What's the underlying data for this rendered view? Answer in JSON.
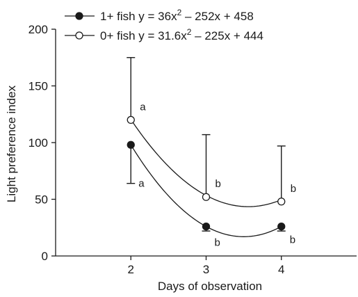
{
  "chart_data": {
    "type": "scatter",
    "xlabel": "Days of observation",
    "ylabel": "Light preference index",
    "x_ticks": [
      2,
      3,
      4
    ],
    "y_ticks": [
      0,
      50,
      100,
      150,
      200
    ],
    "xlim": [
      1,
      5
    ],
    "ylim": [
      0,
      200
    ],
    "grid": false,
    "legend_position": "top-left",
    "series": [
      {
        "name": "1+ fish",
        "equation_prefix": "y = 36x",
        "equation_exp": "2",
        "equation_suffix": " – 252x + 458",
        "marker": "filled-circle",
        "x": [
          2,
          3,
          4
        ],
        "y": [
          98,
          26,
          26
        ],
        "error_low": [
          64,
          22,
          22
        ],
        "error_high": [
          98,
          26,
          26
        ],
        "error_direction": "down",
        "letters": [
          "a",
          "b",
          "b"
        ],
        "letter_side": [
          "right-below",
          "below",
          "right-below"
        ],
        "fit": {
          "a": 36,
          "b": -252,
          "c": 458
        }
      },
      {
        "name": "0+ fish",
        "equation_prefix": "y = 31.6x",
        "equation_exp": "2",
        "equation_suffix": " – 225x + 444",
        "marker": "open-circle",
        "x": [
          2,
          3,
          4
        ],
        "y": [
          120,
          52,
          48
        ],
        "error_low": [
          120,
          52,
          48
        ],
        "error_high": [
          175,
          107,
          97
        ],
        "error_direction": "up",
        "letters": [
          "a",
          "b",
          "b"
        ],
        "letter_side": [
          "right-above",
          "right-above",
          "right-above"
        ],
        "fit": {
          "a": 31.6,
          "b": -225,
          "c": 444
        }
      }
    ]
  }
}
